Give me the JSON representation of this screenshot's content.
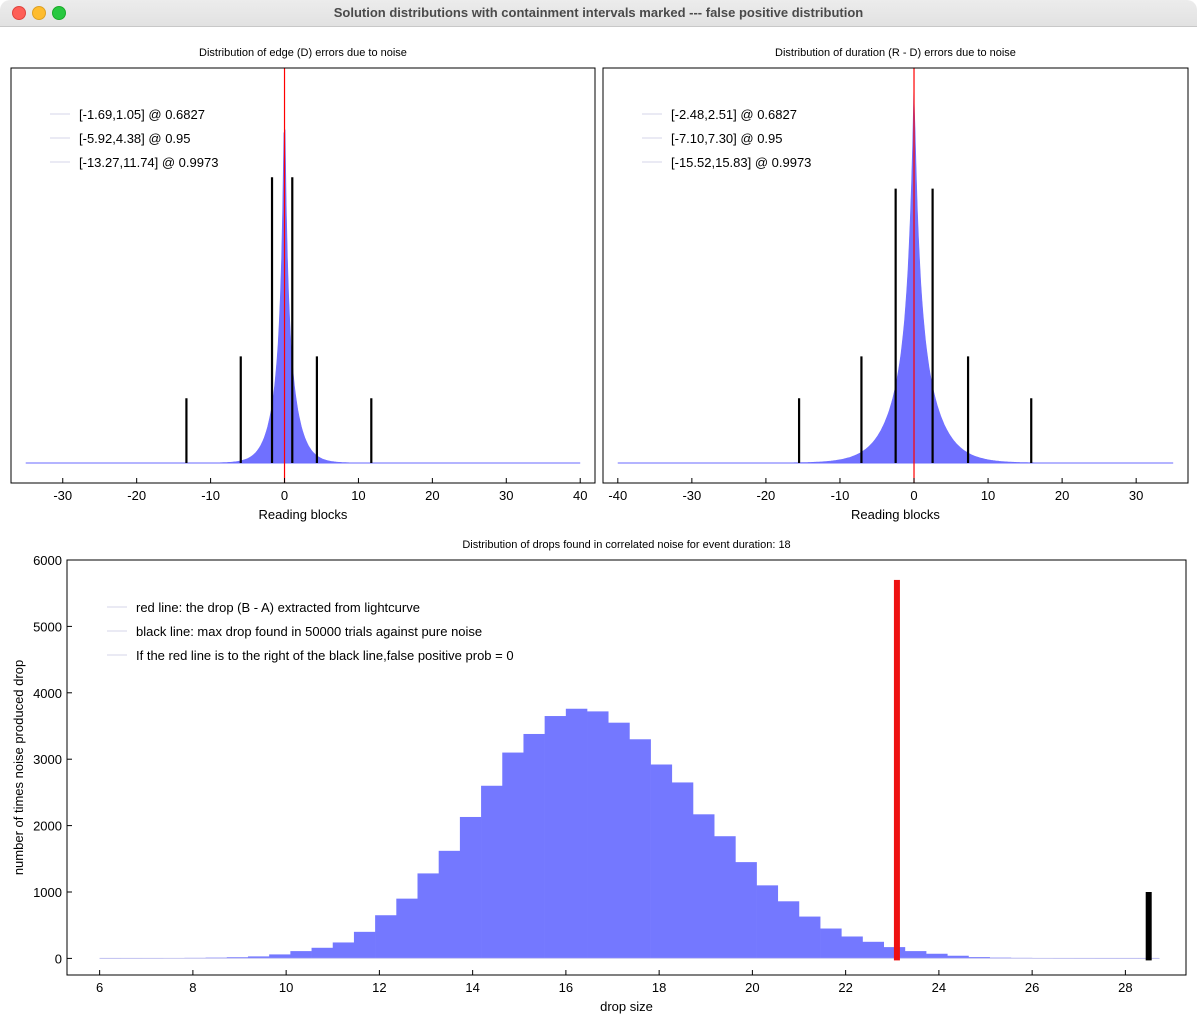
{
  "window": {
    "title": "Solution distributions with containment intervals marked --- false positive distribution"
  },
  "chart_data": [
    {
      "type": "histogram",
      "title": "Distribution of edge (D) errors due to noise",
      "xlabel": "Reading blocks",
      "ylabel": "",
      "xlim": [
        -37,
        42
      ],
      "xticks": [
        -30,
        -20,
        -10,
        0,
        10,
        20,
        30,
        40
      ],
      "y_axis_labels_shown": false,
      "distribution": {
        "shape": "laplace-like",
        "center": 0,
        "scale": 1.3,
        "peak_relative": 1.0,
        "color": "#7070ff"
      },
      "marker_line": {
        "x": 0,
        "color": "#ff0000"
      },
      "intervals": [
        {
          "lo": -1.69,
          "hi": 1.05,
          "prob": 0.6827,
          "line_height_relative": 0.75
        },
        {
          "lo": -5.92,
          "hi": 4.38,
          "prob": 0.95,
          "line_height_relative": 0.28
        },
        {
          "lo": -13.27,
          "hi": 11.74,
          "prob": 0.9973,
          "line_height_relative": 0.17
        }
      ],
      "legend": [
        "[-1.69,1.05] @ 0.6827",
        "[-5.92,4.38] @ 0.95",
        "[-13.27,11.74] @ 0.9973"
      ],
      "legend_position": "top-left"
    },
    {
      "type": "histogram",
      "title": "Distribution of duration (R - D) errors due to noise",
      "xlabel": "Reading blocks",
      "ylabel": "",
      "xlim": [
        -42,
        37
      ],
      "xticks": [
        -40,
        -30,
        -20,
        -10,
        0,
        10,
        20,
        30
      ],
      "y_axis_labels_shown": false,
      "distribution": {
        "shape": "laplace-like",
        "center": 0,
        "scale": 2.4,
        "peak_relative": 1.0,
        "color": "#7070ff"
      },
      "marker_line": {
        "x": 0,
        "color": "#ff0000"
      },
      "intervals": [
        {
          "lo": -2.48,
          "hi": 2.51,
          "prob": 0.6827,
          "line_height_relative": 0.72
        },
        {
          "lo": -7.1,
          "hi": 7.3,
          "prob": 0.95,
          "line_height_relative": 0.28
        },
        {
          "lo": -15.52,
          "hi": 15.83,
          "prob": 0.9973,
          "line_height_relative": 0.17
        }
      ],
      "legend": [
        "[-2.48,2.51] @ 0.6827",
        "[-7.10,7.30] @ 0.95",
        "[-15.52,15.83] @ 0.9973"
      ],
      "legend_position": "top-left"
    },
    {
      "type": "bar",
      "title": "Distribution of drops found in correlated noise for event duration: 18",
      "xlabel": "drop size",
      "ylabel": "number of times noise produced drop",
      "xlim": [
        5.3,
        29.3
      ],
      "ylim": [
        -250,
        6000
      ],
      "xticks": [
        6,
        8,
        10,
        12,
        14,
        16,
        18,
        20,
        22,
        24,
        26,
        28
      ],
      "yticks": [
        0,
        1000,
        2000,
        3000,
        4000,
        5000,
        6000
      ],
      "bar_color": "#7478ff",
      "bin_start": 6.0,
      "bin_width": 0.4545,
      "values": [
        2,
        3,
        4,
        6,
        8,
        12,
        18,
        30,
        60,
        110,
        160,
        240,
        400,
        650,
        900,
        1280,
        1620,
        2130,
        2600,
        3100,
        3380,
        3650,
        3760,
        3720,
        3550,
        3300,
        2920,
        2650,
        2170,
        1840,
        1450,
        1100,
        860,
        630,
        450,
        330,
        250,
        170,
        110,
        70,
        40,
        20,
        12,
        8,
        5,
        3,
        2,
        1,
        1,
        1
      ],
      "red_line": {
        "x": 23.1,
        "height": 5700,
        "color": "#ee1111"
      },
      "black_line": {
        "x": 28.5,
        "height": 1000,
        "color": "#000000"
      },
      "legend": [
        "red line: the drop (B - A) extracted from lightcurve",
        "black line: max drop found in 50000 trials against pure noise",
        "If the red line is to the right of the black line,false positive prob = 0"
      ],
      "legend_position": "top-left"
    }
  ]
}
